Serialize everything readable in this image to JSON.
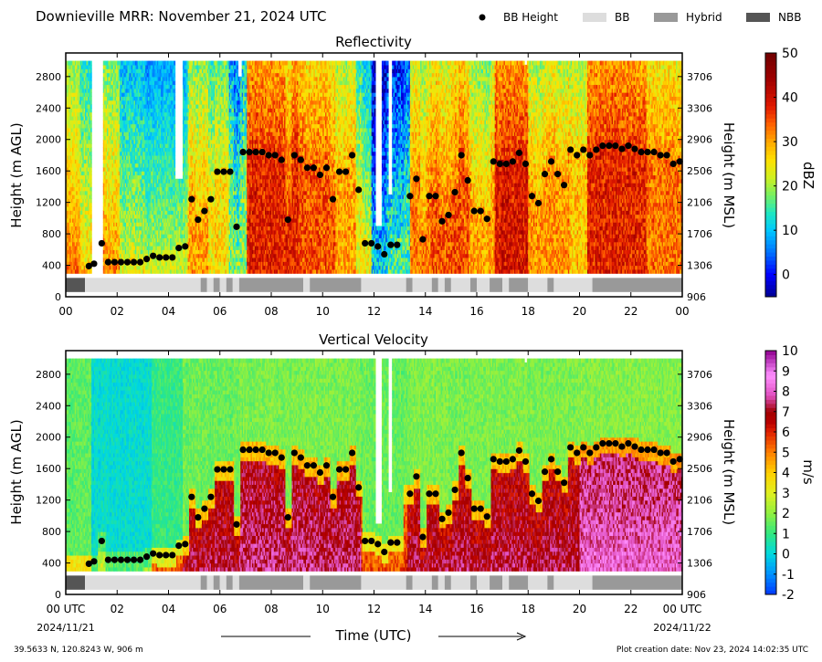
{
  "header": {
    "title": "Downieville MRR:  November 21, 2024 UTC",
    "legend": [
      {
        "label": "BB Height",
        "marker": "dot",
        "color": "#000000"
      },
      {
        "label": "BB",
        "marker": "rect",
        "color": "#dddddd"
      },
      {
        "label": "Hybrid",
        "marker": "rect",
        "color": "#999999"
      },
      {
        "label": "NBB",
        "marker": "rect",
        "color": "#555555"
      }
    ]
  },
  "footer": {
    "location": "39.5633 N, 120.8243 W, 906 m",
    "creation": "Plot creation date: Nov 23, 2024 14:02:35 UTC",
    "xlabel": "Time (UTC)",
    "start_label": "00 UTC",
    "start_date": "2024/11/21",
    "end_label": "00 UTC",
    "end_date": "2024/11/22"
  },
  "chart_data": [
    {
      "type": "heatmap",
      "title": "Reflectivity",
      "ylabel": "Height (m AGL)",
      "ylabel_right": "Height (m MSL)",
      "xlim": [
        0,
        24
      ],
      "ylim": [
        0,
        3100
      ],
      "x_ticks": [
        "00",
        "02",
        "04",
        "06",
        "08",
        "10",
        "12",
        "14",
        "16",
        "18",
        "20",
        "22",
        "00"
      ],
      "y_ticks": [
        0,
        400,
        800,
        1200,
        1600,
        2000,
        2400,
        2800
      ],
      "y_ticks_right": [
        906,
        1306,
        1706,
        2106,
        2506,
        2906,
        3306,
        3706
      ],
      "colorbar": {
        "label": "dBZ",
        "min": -5,
        "max": 50,
        "ticks": [
          0,
          10,
          20,
          30,
          40,
          50
        ]
      },
      "bb_height": {
        "hours": [
          0.9,
          1.1,
          1.4,
          1.65,
          1.9,
          2.15,
          2.4,
          2.65,
          2.9,
          3.15,
          3.4,
          3.65,
          3.9,
          4.15,
          4.4,
          4.65,
          4.9,
          5.15,
          5.4,
          5.65,
          5.9,
          6.15,
          6.4,
          6.65,
          6.9,
          7.15,
          7.4,
          7.65,
          7.9,
          8.15,
          8.4,
          8.65,
          8.9,
          9.15,
          9.4,
          9.65,
          9.9,
          10.15,
          10.4,
          10.65,
          10.9,
          11.15,
          11.4,
          11.65,
          11.9,
          12.15,
          12.4,
          12.65,
          12.9,
          13.4,
          13.65,
          13.9,
          14.15,
          14.4,
          14.65,
          14.9,
          15.15,
          15.4,
          15.65,
          15.9,
          16.15,
          16.4,
          16.65,
          16.9,
          17.15,
          17.4,
          17.65,
          17.9,
          18.15,
          18.4,
          18.65,
          18.9,
          19.15,
          19.4,
          19.65,
          19.9,
          20.15,
          20.4,
          20.65,
          20.9,
          21.15,
          21.4,
          21.65,
          21.9,
          22.15,
          22.4,
          22.65,
          22.9,
          23.15,
          23.4,
          23.65,
          23.9
        ],
        "heights": [
          390,
          420,
          680,
          440,
          440,
          440,
          440,
          440,
          440,
          480,
          520,
          500,
          500,
          500,
          620,
          640,
          1240,
          980,
          1090,
          1240,
          1590,
          1590,
          1590,
          890,
          1840,
          1840,
          1840,
          1840,
          1800,
          1800,
          1740,
          980,
          1800,
          1740,
          1640,
          1640,
          1550,
          1640,
          1240,
          1590,
          1590,
          1800,
          1360,
          680,
          680,
          640,
          540,
          660,
          660,
          1280,
          1500,
          730,
          1280,
          1280,
          960,
          1040,
          1330,
          1800,
          1480,
          1090,
          1090,
          990,
          1720,
          1690,
          1690,
          1720,
          1830,
          1690,
          1280,
          1190,
          1560,
          1720,
          1560,
          1420,
          1870,
          1800,
          1870,
          1800,
          1870,
          1920,
          1920,
          1920,
          1880,
          1920,
          1880,
          1840,
          1840,
          1840,
          1800,
          1800,
          1690,
          1720
        ]
      },
      "band_classification": {
        "segments": [
          {
            "start": 0.0,
            "end": 0.75,
            "class": "NBB"
          },
          {
            "start": 0.75,
            "end": 5.25,
            "class": "BB"
          },
          {
            "start": 5.25,
            "end": 5.5,
            "class": "Hybrid"
          },
          {
            "start": 5.5,
            "end": 5.75,
            "class": "BB"
          },
          {
            "start": 5.75,
            "end": 6.0,
            "class": "Hybrid"
          },
          {
            "start": 6.0,
            "end": 6.25,
            "class": "BB"
          },
          {
            "start": 6.25,
            "end": 6.5,
            "class": "Hybrid"
          },
          {
            "start": 6.5,
            "end": 6.75,
            "class": "BB"
          },
          {
            "start": 6.75,
            "end": 9.25,
            "class": "Hybrid"
          },
          {
            "start": 9.25,
            "end": 9.5,
            "class": "BB"
          },
          {
            "start": 9.5,
            "end": 11.5,
            "class": "Hybrid"
          },
          {
            "start": 11.5,
            "end": 13.25,
            "class": "BB"
          },
          {
            "start": 13.25,
            "end": 13.5,
            "class": "Hybrid"
          },
          {
            "start": 13.5,
            "end": 14.25,
            "class": "BB"
          },
          {
            "start": 14.25,
            "end": 14.5,
            "class": "Hybrid"
          },
          {
            "start": 14.5,
            "end": 14.75,
            "class": "BB"
          },
          {
            "start": 14.75,
            "end": 15.0,
            "class": "Hybrid"
          },
          {
            "start": 15.0,
            "end": 15.75,
            "class": "BB"
          },
          {
            "start": 15.75,
            "end": 16.0,
            "class": "Hybrid"
          },
          {
            "start": 16.0,
            "end": 16.5,
            "class": "BB"
          },
          {
            "start": 16.5,
            "end": 17.0,
            "class": "Hybrid"
          },
          {
            "start": 17.0,
            "end": 17.25,
            "class": "BB"
          },
          {
            "start": 17.25,
            "end": 18.0,
            "class": "Hybrid"
          },
          {
            "start": 18.0,
            "end": 18.75,
            "class": "BB"
          },
          {
            "start": 18.75,
            "end": 19.0,
            "class": "Hybrid"
          },
          {
            "start": 19.0,
            "end": 20.5,
            "class": "BB"
          },
          {
            "start": 20.5,
            "end": 24.0,
            "class": "Hybrid"
          }
        ]
      },
      "field": {
        "palette": [
          "#000090",
          "#0000ff",
          "#0070ff",
          "#00c8ff",
          "#20e8c0",
          "#78f060",
          "#d0f020",
          "#ffe000",
          "#ffa800",
          "#ff6000",
          "#e01800",
          "#a00000",
          "#700000"
        ],
        "levels": [
          -5,
          0,
          5,
          10,
          14,
          18,
          22,
          26,
          30,
          34,
          38,
          44,
          50
        ],
        "surface": 22,
        "surface_hi": 30,
        "surface_top": 2100,
        "surface_top_lo": 1700,
        "aloft": 24,
        "aloft_spread": 5,
        "deep": 15,
        "deep_spread": 4,
        "segments": [
          {
            "start": 0.0,
            "end": 0.5,
            "base": 32,
            "spread": 4
          },
          {
            "start": 0.5,
            "end": 1.3,
            "base": 26,
            "spread": 5
          },
          {
            "start": 1.3,
            "end": 2.1,
            "base": 30,
            "spread": 5
          },
          {
            "start": 2.1,
            "end": 3.0,
            "base": 22,
            "spread": 5
          },
          {
            "start": 3.0,
            "end": 4.7,
            "base": 20,
            "spread": 4
          },
          {
            "start": 4.7,
            "end": 5.5,
            "base": 28,
            "spread": 5
          },
          {
            "start": 5.5,
            "end": 6.3,
            "base": 24,
            "spread": 5
          },
          {
            "start": 6.3,
            "end": 7.0,
            "base": 16,
            "spread": 7
          },
          {
            "start": 7.0,
            "end": 9.0,
            "base": 36,
            "spread": 5
          },
          {
            "start": 9.0,
            "end": 10.5,
            "base": 33,
            "spread": 5
          },
          {
            "start": 10.5,
            "end": 11.3,
            "base": 28,
            "spread": 5
          },
          {
            "start": 11.3,
            "end": 11.9,
            "base": 22,
            "spread": 5
          },
          {
            "start": 11.9,
            "end": 12.5,
            "base": 9,
            "spread": 7
          },
          {
            "start": 12.5,
            "end": 13.4,
            "base": 13,
            "spread": 7
          },
          {
            "start": 13.4,
            "end": 14.2,
            "base": 30,
            "spread": 5
          },
          {
            "start": 14.2,
            "end": 15.7,
            "base": 33,
            "spread": 5
          },
          {
            "start": 15.7,
            "end": 16.7,
            "base": 28,
            "spread": 5
          },
          {
            "start": 16.7,
            "end": 18.0,
            "base": 37,
            "spread": 5
          },
          {
            "start": 18.0,
            "end": 19.6,
            "base": 29,
            "spread": 5
          },
          {
            "start": 19.6,
            "end": 20.3,
            "base": 26,
            "spread": 5
          },
          {
            "start": 20.3,
            "end": 22.6,
            "base": 36,
            "spread": 5
          },
          {
            "start": 22.6,
            "end": 24.0,
            "base": 31,
            "spread": 5
          }
        ],
        "gaps": [
          {
            "start": 1.0,
            "end": 1.45,
            "from": 300
          },
          {
            "start": 4.2,
            "end": 4.5,
            "from": 1500
          },
          {
            "start": 6.65,
            "end": 6.8,
            "from": 2800
          },
          {
            "start": 12.05,
            "end": 12.3,
            "from": 900
          },
          {
            "start": 12.55,
            "end": 12.7,
            "from": 1300
          },
          {
            "start": 17.85,
            "end": 17.95,
            "from": 2950
          }
        ]
      }
    },
    {
      "type": "heatmap",
      "title": "Vertical Velocity",
      "ylabel": "Height (m AGL)",
      "ylabel_right": "Height (m MSL)",
      "xlim": [
        0,
        24
      ],
      "ylim": [
        0,
        3100
      ],
      "x_ticks": [
        "00 UTC",
        "02",
        "04",
        "06",
        "08",
        "10",
        "12",
        "14",
        "16",
        "18",
        "20",
        "22",
        "00 UTC"
      ],
      "y_ticks": [
        0,
        400,
        800,
        1200,
        1600,
        2000,
        2400,
        2800
      ],
      "y_ticks_right": [
        906,
        1306,
        1706,
        2106,
        2506,
        2906,
        3306,
        3706
      ],
      "colorbar": {
        "label": "m/s",
        "min": -2,
        "max": 10,
        "ticks": [
          -2,
          -1,
          0,
          1,
          2,
          3,
          4,
          5,
          6,
          7,
          8,
          9,
          10
        ]
      },
      "bb_height_ref": 0,
      "band_classification_ref": 0,
      "field": {
        "palette": [
          "#0038ff",
          "#0090ff",
          "#00d8e0",
          "#30e880",
          "#90f040",
          "#e0f020",
          "#ffd000",
          "#ff8000",
          "#e02000",
          "#b80000",
          "#a00000",
          "#e050c0",
          "#ff90ff",
          "#900090"
        ],
        "levels": [
          -2,
          -1,
          0,
          1,
          2,
          3,
          4,
          5,
          6,
          6.5,
          7,
          7.8,
          8.8,
          10
        ],
        "mode": "velocity",
        "snow_base": 1.8,
        "snow_spread": 0.5,
        "segments": [
          {
            "start": 0.0,
            "end": 1.0,
            "base": 1.5,
            "rain": 5.5
          },
          {
            "start": 1.0,
            "end": 3.3,
            "base": 0.2,
            "rain": 2.5
          },
          {
            "start": 3.3,
            "end": 4.5,
            "base": 1.0,
            "rain": 5.2
          },
          {
            "start": 4.5,
            "end": 6.7,
            "base": 1.6,
            "rain": 6.5
          },
          {
            "start": 6.7,
            "end": 11.5,
            "base": 1.8,
            "rain": 6.8
          },
          {
            "start": 11.5,
            "end": 13.3,
            "base": 1.6,
            "rain": 5.2
          },
          {
            "start": 13.3,
            "end": 20.0,
            "base": 1.8,
            "rain": 6.5
          },
          {
            "start": 20.0,
            "end": 24.0,
            "base": 1.9,
            "rain": 7.4
          }
        ],
        "gaps": [
          {
            "start": 12.05,
            "end": 12.3,
            "from": 900
          },
          {
            "start": 12.55,
            "end": 12.7,
            "from": 1300
          },
          {
            "start": 17.85,
            "end": 17.95,
            "from": 2950
          }
        ]
      }
    }
  ]
}
